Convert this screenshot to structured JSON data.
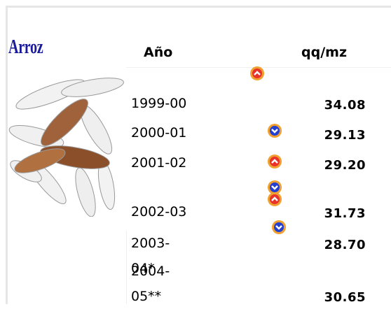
{
  "header": {
    "title": "Arroz",
    "columns": [
      "Año",
      "qq/mz"
    ]
  },
  "table": {
    "rows": [
      {
        "year": "1999-00",
        "value": "34.08"
      },
      {
        "year": "2000-01",
        "value": "29.13"
      },
      {
        "year": "2001-02",
        "value": "29.20"
      },
      {
        "year": "2002-03",
        "value": "31.73"
      },
      {
        "year": "2003-04*",
        "value": "28.70"
      },
      {
        "year": "2004-05**",
        "value": "30.65"
      }
    ]
  }
}
